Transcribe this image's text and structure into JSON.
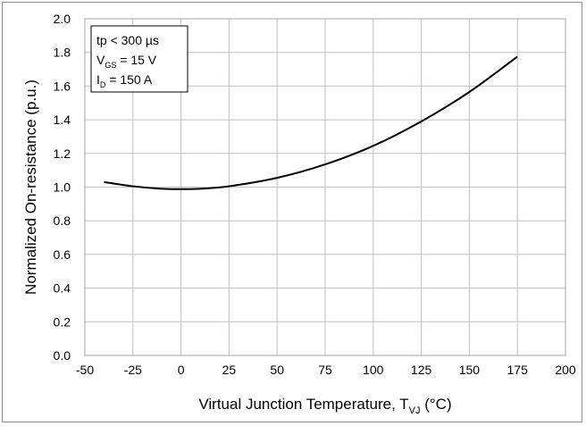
{
  "chart_data": {
    "type": "line",
    "xlabel": {
      "main": "Virtual Junction Temperature, T",
      "sub": "VJ",
      "tail": " (°C)"
    },
    "ylabel": "Normalized On-resistance (p.u.)",
    "xlim": [
      -50,
      200
    ],
    "ylim": [
      0.0,
      2.0
    ],
    "xticks": [
      -50,
      -25,
      0,
      25,
      50,
      75,
      100,
      125,
      150,
      175,
      200
    ],
    "yticks": [
      "0.0",
      "0.2",
      "0.4",
      "0.6",
      "0.8",
      "1.0",
      "1.2",
      "1.4",
      "1.6",
      "1.8",
      "2.0"
    ],
    "grid": true,
    "annotation": [
      {
        "main": "tp < 300 µs",
        "sub": "",
        "tail": ""
      },
      {
        "main": "V",
        "sub": "GS",
        "tail": " = 15 V"
      },
      {
        "main": "I",
        "sub": "D",
        "tail": " = 150 A"
      }
    ],
    "series": [
      {
        "color": "#000000",
        "x": [
          -40,
          -25,
          -10,
          0,
          10,
          25,
          50,
          75,
          100,
          125,
          150,
          175
        ],
        "y": [
          1.03,
          1.005,
          0.99,
          0.988,
          0.99,
          1.005,
          1.055,
          1.135,
          1.245,
          1.39,
          1.565,
          1.775
        ]
      }
    ]
  }
}
